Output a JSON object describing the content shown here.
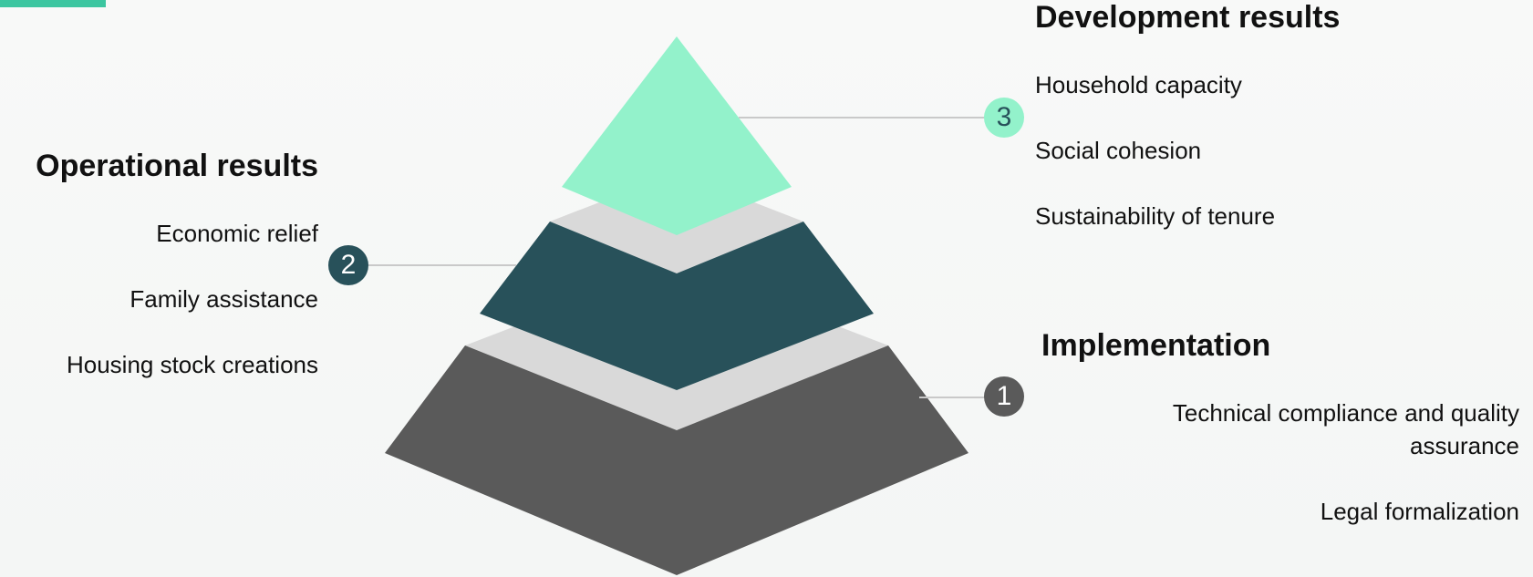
{
  "colors": {
    "accent": "#3cc6a0",
    "tier_top": "#93f2cb",
    "tier_middle": "#28515a",
    "tier_bottom": "#5a5a5a",
    "tier_shadow": "#d9d9d9",
    "connector": "#c9c9c9"
  },
  "development": {
    "number": "3",
    "title": "Development results",
    "items": [
      "Household capacity",
      "Social cohesion",
      "Sustainability of tenure"
    ]
  },
  "operational": {
    "number": "2",
    "title": "Operational results",
    "items": [
      "Economic relief",
      "Family assistance",
      "Housing stock creations"
    ]
  },
  "implementation": {
    "number": "1",
    "title": "Implementation",
    "items": [
      "Technical compliance and quality",
      "assurance",
      "Legal formalization"
    ]
  }
}
